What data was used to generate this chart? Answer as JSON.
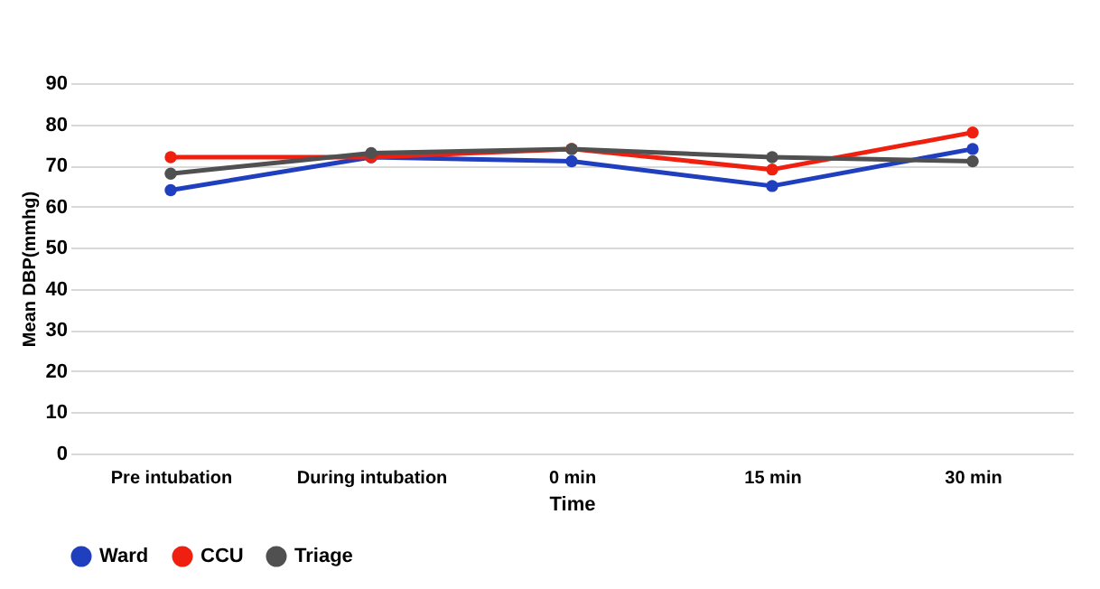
{
  "chart_data": {
    "type": "line",
    "xlabel": "Time",
    "ylabel": "Mean DBP(mmhg)",
    "categories": [
      "Pre intubation",
      "During intubation",
      "0 min",
      "15 min",
      "30 min"
    ],
    "series": [
      {
        "name": "Ward",
        "color": "#1f3fbf",
        "values": [
          64,
          72,
          71,
          65,
          74
        ]
      },
      {
        "name": "CCU",
        "color": "#f02010",
        "values": [
          72,
          72,
          74,
          69,
          78
        ]
      },
      {
        "name": "Triage",
        "color": "#505050",
        "values": [
          68,
          73,
          74,
          72,
          71
        ]
      }
    ],
    "ylim": [
      0,
      90
    ],
    "yticks": [
      0,
      10,
      20,
      30,
      40,
      50,
      60,
      70,
      80,
      90
    ],
    "grid": "y",
    "legend": "bottom",
    "marker": "circle",
    "line_style": "solid"
  }
}
